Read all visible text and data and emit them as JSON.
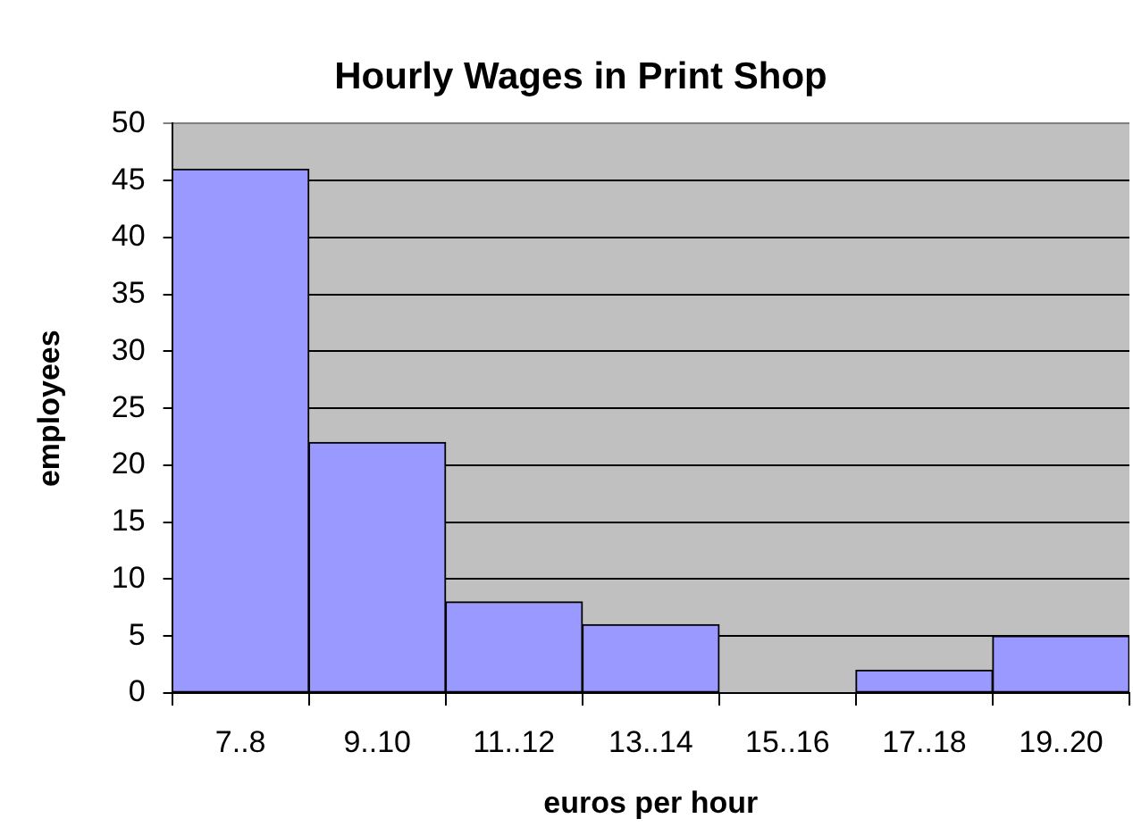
{
  "chart_data": {
    "type": "bar",
    "title": "Hourly Wages in Print Shop",
    "xlabel": "euros per hour",
    "ylabel": "employees",
    "categories": [
      "7..8",
      "9..10",
      "11..12",
      "13..14",
      "15..16",
      "17..18",
      "19..20"
    ],
    "values": [
      46,
      22,
      8,
      6,
      0,
      2,
      5
    ],
    "color": "#9999ff",
    "ylim": [
      0,
      50
    ],
    "yticks": [
      0,
      5,
      10,
      15,
      20,
      25,
      30,
      35,
      40,
      45,
      50
    ],
    "grid": "y"
  }
}
